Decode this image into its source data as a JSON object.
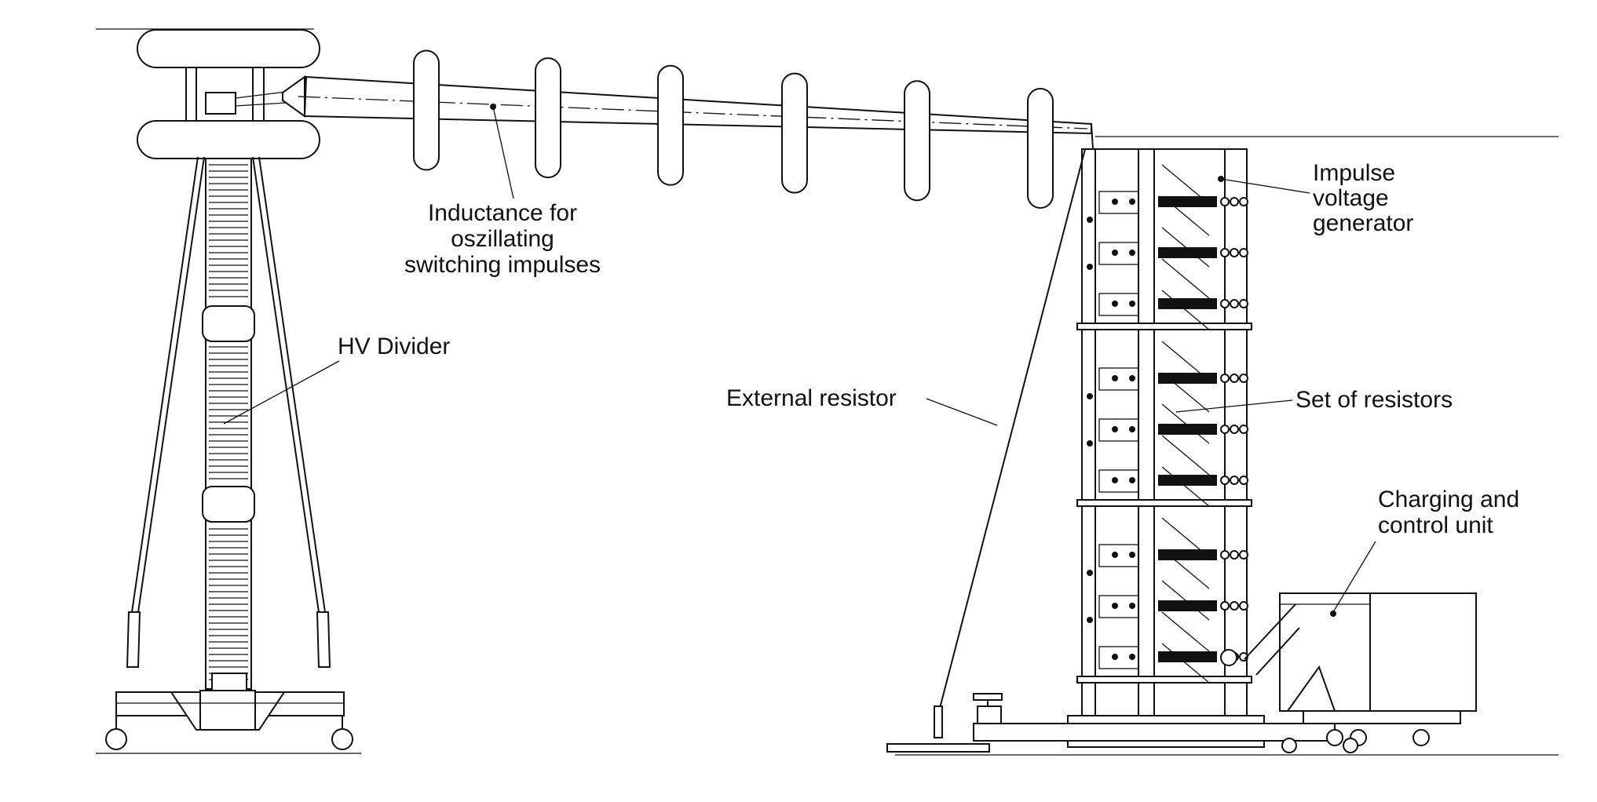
{
  "labels": {
    "inductance": [
      "Inductance for",
      "oszillating",
      "switching impulses"
    ],
    "hv_divider": "HV Divider",
    "external_resistor": "External resistor",
    "impulse_generator": [
      "Impulse",
      "voltage",
      "generator"
    ],
    "set_of_resistors": "Set of resistors",
    "charging_unit": [
      "Charging and",
      "control unit"
    ]
  }
}
